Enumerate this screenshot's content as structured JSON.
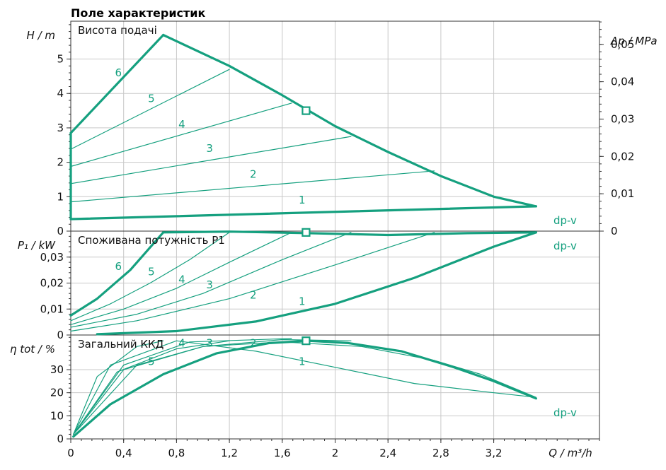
{
  "colors": {
    "curve": "#15a07f",
    "axis": "#333333",
    "grid": "#c8c8c8"
  },
  "chart_data": {
    "title": "Поле характеристик",
    "type": "line",
    "x_axis": {
      "label": "Q / m³/h",
      "range": [
        0,
        4
      ],
      "ticks": [
        0,
        0.4,
        0.8,
        1.2,
        1.6,
        2,
        2.4,
        2.8,
        3.2
      ],
      "tick_labels": [
        "0",
        "0,4",
        "0,8",
        "1,2",
        "1,6",
        "2",
        "2,4",
        "2,8",
        "3,2"
      ]
    },
    "panels": [
      {
        "id": "head",
        "caption": "Висота подачі",
        "ylabel": "H / m",
        "ylim": [
          0,
          6.1
        ],
        "yticks": [
          0,
          1,
          2,
          3,
          4,
          5
        ],
        "ytick_labels": [
          "0",
          "1",
          "2",
          "3",
          "4",
          "5"
        ],
        "y2label": "Δp / MPa",
        "y2ticks": [
          0,
          0.01,
          0.02,
          0.03,
          0.04,
          0.05
        ],
        "y2tick_labels": [
          "0",
          "0,01",
          "0,02",
          "0,03",
          "0,04",
          "0,05"
        ],
        "dpv_label": "dp-v",
        "series": [
          {
            "name": "1",
            "thick": true,
            "x": [
              0,
              3.52
            ],
            "y": [
              0.35,
              0.72
            ],
            "label_at": [
              1.75,
              0.8
            ]
          },
          {
            "name": "2",
            "thick": false,
            "x": [
              0,
              2.75
            ],
            "y": [
              0.85,
              1.75
            ],
            "label_at": [
              1.38,
              1.55
            ]
          },
          {
            "name": "3",
            "thick": false,
            "x": [
              0,
              2.12
            ],
            "y": [
              1.38,
              2.75
            ],
            "label_at": [
              1.05,
              2.3
            ]
          },
          {
            "name": "4",
            "thick": false,
            "x": [
              0,
              1.67
            ],
            "y": [
              1.88,
              3.72
            ],
            "label_at": [
              0.84,
              3.0
            ]
          },
          {
            "name": "5",
            "thick": false,
            "x": [
              0,
              1.2
            ],
            "y": [
              2.38,
              4.7
            ],
            "label_at": [
              0.61,
              3.75
            ]
          },
          {
            "name": "6",
            "thick": true,
            "x": [
              0,
              0.7
            ],
            "y": [
              2.85,
              5.7
            ],
            "label_at": [
              0.36,
              4.5
            ]
          },
          {
            "name": "",
            "thick": true,
            "x": [
              0,
              0
            ],
            "y": [
              0.35,
              2.85
            ]
          },
          {
            "name": "",
            "thick": true,
            "x": [
              0.7,
              1.2,
              1.6,
              2.0,
              2.4,
              2.8,
              3.2,
              3.52
            ],
            "y": [
              5.7,
              4.8,
              3.95,
              3.05,
              2.3,
              1.6,
              1.0,
              0.72
            ]
          }
        ],
        "marker": {
          "x": 1.78,
          "y": 3.5
        }
      },
      {
        "id": "power",
        "caption": "Споживана потужність P1",
        "ylabel": "P₁ / kW",
        "ylim": [
          0,
          0.04
        ],
        "yticks": [
          0,
          0.01,
          0.02,
          0.03
        ],
        "ytick_labels": [
          "0",
          "0,01",
          "0,02",
          "0,03"
        ],
        "dpv_label": "dp-v",
        "series": [
          {
            "name": "1",
            "thick": true,
            "x": [
              0.2,
              0.8,
              1.4,
              2.0,
              2.6,
              3.2,
              3.52
            ],
            "y": [
              0.0003,
              0.0015,
              0.0052,
              0.012,
              0.022,
              0.034,
              0.0395
            ],
            "label_at": [
              1.75,
              0.0115
            ]
          },
          {
            "name": "2",
            "thick": false,
            "x": [
              0,
              0.5,
              1.2,
              2.0,
              2.75
            ],
            "y": [
              0.0015,
              0.0055,
              0.014,
              0.027,
              0.0395
            ],
            "label_at": [
              1.38,
              0.014
            ]
          },
          {
            "name": "3",
            "thick": false,
            "x": [
              0,
              0.5,
              1.0,
              1.6,
              2.12
            ],
            "y": [
              0.003,
              0.008,
              0.016,
              0.029,
              0.0395
            ],
            "label_at": [
              1.05,
              0.018
            ]
          },
          {
            "name": "4",
            "thick": false,
            "x": [
              0,
              0.4,
              0.8,
              1.2,
              1.67
            ],
            "y": [
              0.004,
              0.01,
              0.018,
              0.028,
              0.0395
            ],
            "label_at": [
              0.84,
              0.02
            ]
          },
          {
            "name": "5",
            "thick": false,
            "x": [
              0,
              0.3,
              0.6,
              0.9,
              1.2
            ],
            "y": [
              0.0055,
              0.012,
              0.02,
              0.029,
              0.0395
            ],
            "label_at": [
              0.61,
              0.023
            ]
          },
          {
            "name": "6",
            "thick": true,
            "x": [
              0,
              0.2,
              0.45,
              0.7
            ],
            "y": [
              0.0075,
              0.014,
              0.025,
              0.0395
            ],
            "label_at": [
              0.36,
              0.025
            ]
          },
          {
            "name": "",
            "thick": true,
            "x": [
              0.7,
              1.2,
              1.8,
              2.4,
              3.0,
              3.52
            ],
            "y": [
              0.0395,
              0.0398,
              0.0392,
              0.0385,
              0.0392,
              0.0395
            ]
          }
        ],
        "marker": {
          "x": 1.78,
          "y": 0.0395
        }
      },
      {
        "id": "efficiency",
        "caption": "Загальний ККД",
        "ylabel": "η tot / %",
        "ylim": [
          0,
          45
        ],
        "yticks": [
          0,
          10,
          20,
          30
        ],
        "ytick_labels": [
          "0",
          "10",
          "20",
          "30"
        ],
        "dpv_label": "dp-v",
        "series": [
          {
            "name": "1",
            "thick": false,
            "x": [
              0.02,
              0.3,
              0.8,
              1.4,
              2.0,
              2.6,
              3.2,
              3.52
            ],
            "y": [
              2,
              32,
              42.5,
              38,
              31,
              24,
              20,
              18
            ],
            "label_at": [
              1.75,
              32
            ]
          },
          {
            "name": "2",
            "thick": false,
            "x": [
              0.02,
              0.4,
              1.0,
              1.6,
              2.2,
              2.75,
              3.1,
              3.52
            ],
            "y": [
              2,
              30,
              40,
              42,
              40,
              34,
              28,
              18
            ],
            "label_at": [
              1.38,
              40
            ]
          },
          {
            "name": "3",
            "thick": false,
            "x": [
              0.02,
              0.5,
              1.0,
              1.6,
              2.12
            ],
            "y": [
              2,
              32,
              40,
              43,
              42.5
            ],
            "label_at": [
              1.05,
              40
            ]
          },
          {
            "name": "4",
            "thick": false,
            "x": [
              0.02,
              0.4,
              0.9,
              1.67
            ],
            "y": [
              2,
              32,
              42,
              43.5
            ],
            "label_at": [
              0.84,
              40
            ]
          },
          {
            "name": "5",
            "thick": false,
            "x": [
              0.02,
              0.35,
              0.8,
              1.2
            ],
            "y": [
              2,
              29,
              39,
              42.5
            ],
            "label_at": [
              0.61,
              32
            ]
          },
          {
            "name": "6",
            "thick": false,
            "x": [
              0.02,
              0.2,
              0.5,
              0.7
            ],
            "y": [
              2,
              27,
              40,
              42.5
            ]
          },
          {
            "name": "",
            "thick": true,
            "x": [
              0.02,
              0.3,
              0.7,
              1.1,
              1.5,
              1.8,
              2.1,
              2.5,
              2.9,
              3.2,
              3.52
            ],
            "y": [
              1,
              15,
              28,
              37,
              41.5,
              42.5,
              41.5,
              38,
              31,
              25,
              17.5
            ]
          }
        ],
        "marker": {
          "x": 1.78,
          "y": 42.5
        }
      }
    ]
  }
}
